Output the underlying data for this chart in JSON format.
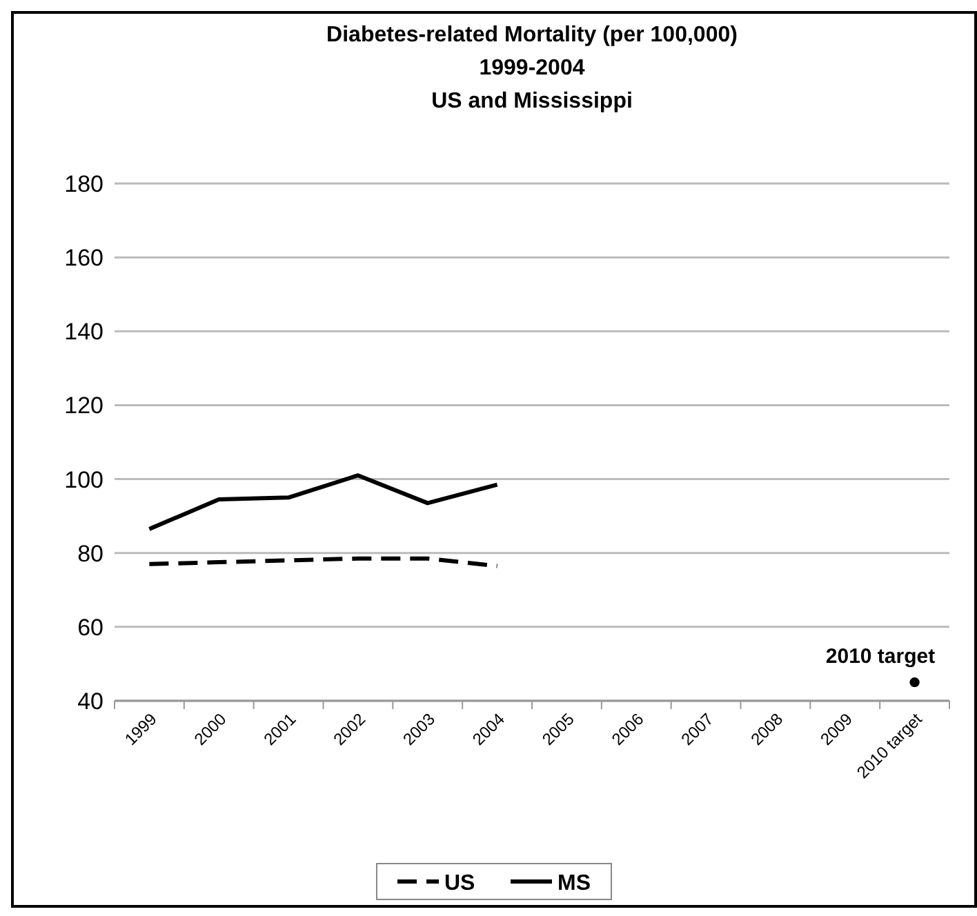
{
  "chart_data": {
    "type": "line",
    "title": "Diabetes-related Mortality (per 100,000)\n1999-2004\nUS and Mississippi",
    "categories": [
      "1999",
      "2000",
      "2001",
      "2002",
      "2003",
      "2004",
      "2005",
      "2006",
      "2007",
      "2008",
      "2009",
      "2010 target"
    ],
    "series": [
      {
        "name": "US",
        "color": "#000000",
        "line_style": "dashed",
        "marker": "none",
        "values": [
          77,
          77.5,
          78,
          78.5,
          78.5,
          76.5,
          null,
          null,
          null,
          null,
          null,
          null
        ]
      },
      {
        "name": "MS",
        "color": "#000000",
        "line_style": "solid",
        "marker": "none",
        "values": [
          86.5,
          94.5,
          95,
          101,
          93.5,
          98.5,
          null,
          null,
          null,
          null,
          null,
          null
        ]
      },
      {
        "type": "scatter",
        "color": "#000000",
        "marker": "circle",
        "values": [
          null,
          null,
          null,
          null,
          null,
          null,
          null,
          null,
          null,
          null,
          null,
          45
        ]
      }
    ],
    "annotations": [
      {
        "text": "2010 target",
        "x": "2010 target",
        "y": 45
      }
    ],
    "ylim": [
      40,
      180
    ],
    "yticks": [
      40,
      60,
      80,
      100,
      120,
      140,
      160,
      180
    ],
    "grid": "y",
    "legend": "bottom"
  }
}
